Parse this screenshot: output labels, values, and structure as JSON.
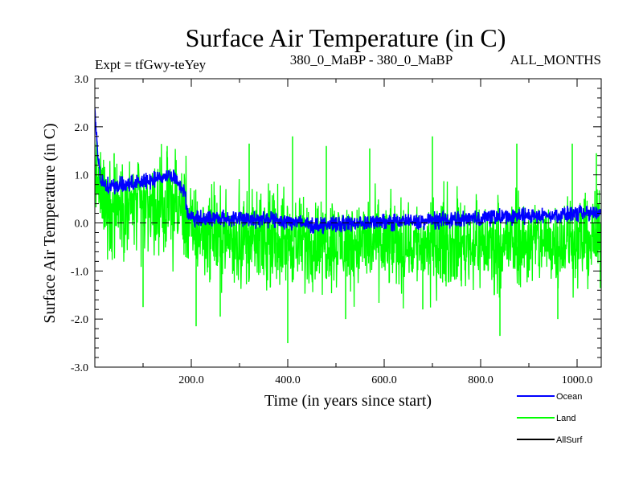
{
  "chart_data": {
    "type": "line",
    "title": "Surface Air Temperature (in C)",
    "subtitle_left": "Expt = tfGwy-teYey",
    "subtitle_center": "380_0_MaBP - 380_0_MaBP",
    "subtitle_right": "ALL_MONTHS",
    "xlabel": "Time (in years since start)",
    "ylabel": "Surface Air Temperature (in C)",
    "xlim": [
      0,
      1050
    ],
    "ylim": [
      -3.0,
      3.0
    ],
    "x_ticks": [
      {
        "value": 200,
        "label": "200.0"
      },
      {
        "value": 400,
        "label": "400.0"
      },
      {
        "value": 600,
        "label": "600.0"
      },
      {
        "value": 800,
        "label": "800.0"
      },
      {
        "value": 1000,
        "label": "1000.0"
      }
    ],
    "y_ticks": [
      {
        "value": 3.0,
        "label": "3.0"
      },
      {
        "value": 2.0,
        "label": "2.0"
      },
      {
        "value": 1.0,
        "label": "1.0"
      },
      {
        "value": 0.0,
        "label": "0.0"
      },
      {
        "value": -1.0,
        "label": "-1.0"
      },
      {
        "value": -2.0,
        "label": "-2.0"
      },
      {
        "value": -3.0,
        "label": "-3.0"
      }
    ],
    "reference_line": {
      "y": 0.0,
      "style": "dashed"
    },
    "series": [
      {
        "name": "Land",
        "color": "#00ff00",
        "description": "high-variance noisy series",
        "mean_profile": [
          [
            0,
            1.2
          ],
          [
            10,
            0.6
          ],
          [
            30,
            0.35
          ],
          [
            180,
            0.3
          ],
          [
            200,
            -0.15
          ],
          [
            300,
            -0.35
          ],
          [
            450,
            -0.4
          ],
          [
            700,
            -0.45
          ],
          [
            900,
            -0.4
          ],
          [
            1050,
            -0.35
          ]
        ],
        "amplitude": 0.55,
        "spikes_up": [
          [
            40,
            1.45
          ],
          [
            150,
            1.6
          ],
          [
            320,
            1.65
          ],
          [
            410,
            1.8
          ],
          [
            480,
            1.6
          ],
          [
            570,
            1.55
          ],
          [
            700,
            1.8
          ],
          [
            875,
            1.65
          ],
          [
            990,
            1.65
          ],
          [
            1040,
            1.45
          ]
        ],
        "spikes_down": [
          [
            100,
            -1.75
          ],
          [
            210,
            -2.15
          ],
          [
            260,
            -1.95
          ],
          [
            400,
            -2.5
          ],
          [
            520,
            -2.0
          ],
          [
            680,
            -1.8
          ],
          [
            840,
            -2.35
          ],
          [
            960,
            -2.0
          ]
        ]
      },
      {
        "name": "Ocean",
        "color": "#0000ff",
        "description": "low-variance series",
        "mean_profile": [
          [
            0,
            2.3
          ],
          [
            5,
            1.6
          ],
          [
            12,
            0.9
          ],
          [
            30,
            0.75
          ],
          [
            100,
            0.85
          ],
          [
            160,
            1.0
          ],
          [
            185,
            0.7
          ],
          [
            195,
            0.1
          ],
          [
            260,
            0.1
          ],
          [
            400,
            0.05
          ],
          [
            450,
            -0.05
          ],
          [
            550,
            0.0
          ],
          [
            700,
            0.05
          ],
          [
            900,
            0.15
          ],
          [
            1050,
            0.2
          ]
        ],
        "amplitude": 0.12
      },
      {
        "name": "AllSurf",
        "color": "#000000",
        "description": "not visible in plot area"
      }
    ],
    "legend": {
      "placement": "bottom-right",
      "entries": [
        {
          "label": "Ocean",
          "color": "#0000ff"
        },
        {
          "label": "Land",
          "color": "#00ff00"
        },
        {
          "label": "AllSurf",
          "color": "#000000"
        }
      ]
    }
  }
}
